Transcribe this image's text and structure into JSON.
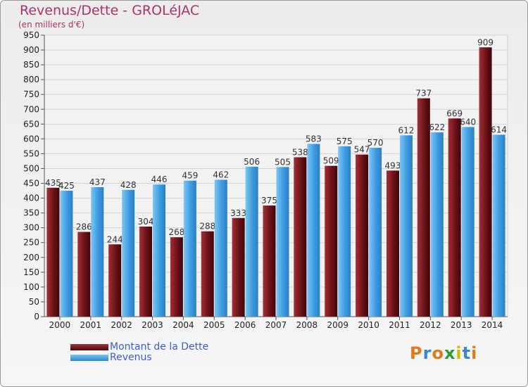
{
  "header": {
    "title": "Revenus/Dette - GROLéJAC",
    "subtitle": "(en milliers d'€)"
  },
  "chart_data": {
    "type": "bar",
    "categories": [
      "2000",
      "2001",
      "2002",
      "2003",
      "2004",
      "2005",
      "2006",
      "2007",
      "2008",
      "2009",
      "2010",
      "2011",
      "2012",
      "2013",
      "2014"
    ],
    "series": [
      {
        "name": "Montant de la Dette",
        "values": [
          435,
          286,
          244,
          304,
          268,
          288,
          333,
          375,
          538,
          509,
          547,
          493,
          737,
          669,
          909
        ],
        "color": "#6b1218"
      },
      {
        "name": "Revenus",
        "values": [
          425,
          437,
          428,
          446,
          459,
          462,
          506,
          505,
          583,
          575,
          570,
          612,
          622,
          640,
          614
        ],
        "color": "#3e9be0"
      }
    ],
    "yticks": [
      0,
      50,
      100,
      150,
      200,
      250,
      300,
      350,
      400,
      450,
      500,
      550,
      600,
      650,
      700,
      750,
      800,
      850,
      900,
      950
    ],
    "ylim": [
      0,
      950
    ],
    "grid": true,
    "legend_position": "bottom-left"
  },
  "legend": {
    "items": [
      {
        "label": "Montant de la Dette",
        "color": "#6b1218"
      },
      {
        "label": "Revenus",
        "color": "#3e9be0"
      }
    ]
  },
  "logo": {
    "letters": [
      "P",
      "r",
      "o",
      "x",
      "i",
      "t",
      "i"
    ],
    "colors": [
      "#e07a1a",
      "#3a86d0",
      "#e07a1a",
      "#2a9a3a",
      "#d8b800",
      "#3a86d0",
      "#e07a1a"
    ]
  }
}
